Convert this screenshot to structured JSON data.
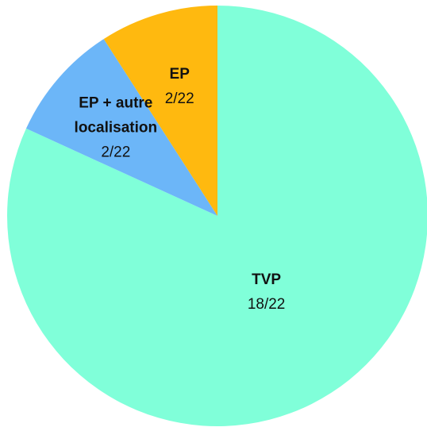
{
  "chart_data": {
    "type": "pie",
    "categories": [
      "TVP",
      "EP + autre localisation",
      "EP"
    ],
    "values": [
      18,
      2,
      2
    ],
    "value_labels": [
      "18/22",
      "2/22",
      "2/22"
    ],
    "colors": [
      "#80ffd9",
      "#6cb6f8",
      "#ffb90f"
    ]
  }
}
